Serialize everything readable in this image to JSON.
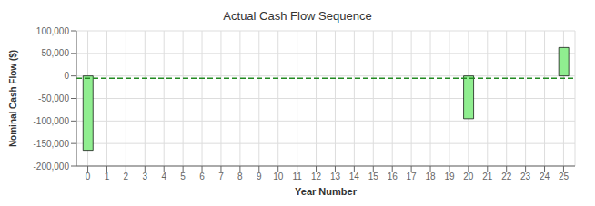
{
  "chart_data": {
    "type": "bar",
    "title": "Actual Cash Flow Sequence",
    "x_label": "Year Number",
    "y_label": "Nominal Cash Flow ($)",
    "x": [
      0,
      20,
      25
    ],
    "values": [
      -165000,
      -95000,
      63000
    ],
    "color": "#90EE90",
    "xlim": [
      -0.6,
      25.6
    ],
    "xticks": [
      0,
      1,
      2,
      3,
      4,
      5,
      6,
      7,
      8,
      9,
      10,
      11,
      12,
      13,
      14,
      15,
      16,
      17,
      18,
      19,
      20,
      21,
      22,
      23,
      24,
      25
    ],
    "ylim": [
      -200000,
      100000
    ],
    "yticks": [
      {
        "value": -200000,
        "label": "-200,000"
      },
      {
        "value": -150000,
        "label": "-150,000"
      },
      {
        "value": -100000,
        "label": "-100,000"
      },
      {
        "value": -50000,
        "label": "-50,000"
      },
      0,
      {
        "value": 50000,
        "label": "50,000"
      },
      {
        "value": 100000,
        "label": "100,000"
      }
    ],
    "reference_line": {
      "y": -5000,
      "color": "#228B22",
      "line_style": "dashed"
    },
    "grid": true
  }
}
